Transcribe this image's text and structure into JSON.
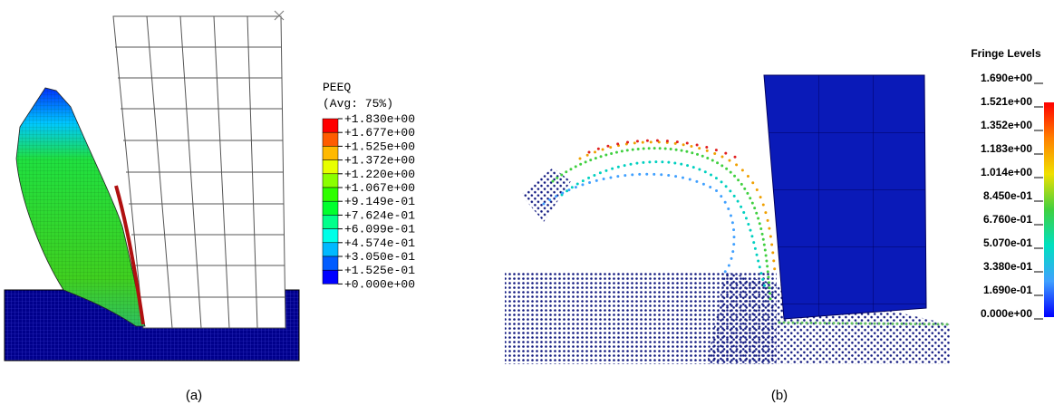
{
  "panels": [
    {
      "caption": "(a)",
      "legend": {
        "title": "PEEQ",
        "subtitle": "(Avg: 75%)",
        "labels": [
          "+1.830e+00",
          "+1.677e+00",
          "+1.525e+00",
          "+1.372e+00",
          "+1.220e+00",
          "+1.067e+00",
          "+9.149e-01",
          "+7.624e-01",
          "+6.099e-01",
          "+4.574e-01",
          "+3.050e-01",
          "+1.525e-01",
          "+0.000e+00"
        ],
        "colors": [
          "#ff0000",
          "#ff5c00",
          "#ffb900",
          "#e8ff00",
          "#8bff00",
          "#2eff00",
          "#00ff2e",
          "#00ff8b",
          "#00ffe8",
          "#00b9ff",
          "#005cff",
          "#0000ff"
        ]
      }
    },
    {
      "caption": "(b)",
      "legend": {
        "title": "Fringe Levels",
        "labels": [
          "1.690e+00",
          "1.521e+00",
          "1.352e+00",
          "1.183e+00",
          "1.014e+00",
          "8.450e-01",
          "6.760e-01",
          "5.070e-01",
          "3.380e-01",
          "1.690e-01",
          "0.000e+00"
        ],
        "colors": [
          "#ff0000",
          "#ff8000",
          "#f0e000",
          "#40d040",
          "#00e0c0",
          "#40a0ff",
          "#0000ff"
        ]
      }
    }
  ]
}
